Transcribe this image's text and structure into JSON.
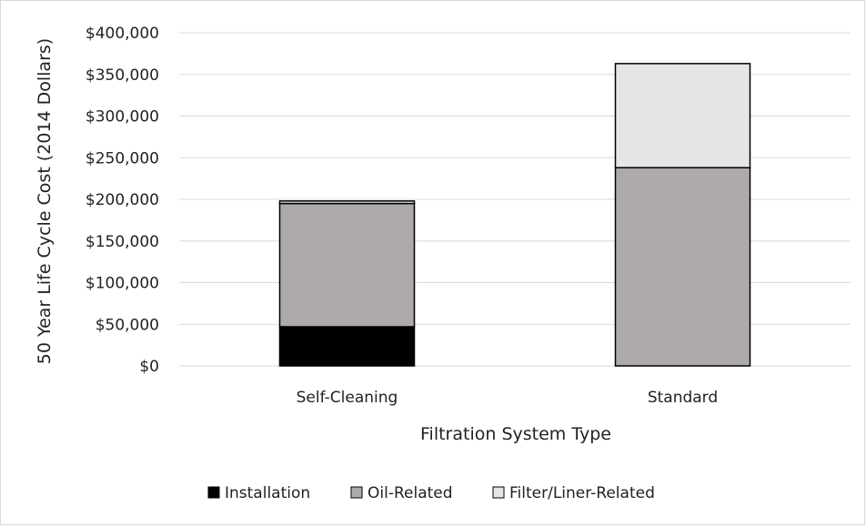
{
  "chart_data": {
    "type": "bar",
    "stacked": true,
    "categories": [
      "Self-Cleaning",
      "Standard"
    ],
    "series": [
      {
        "name": "Installation",
        "color": "#000000",
        "values": [
          47000,
          0
        ]
      },
      {
        "name": "Oil-Related",
        "color": "#aeaaaa",
        "values": [
          148000,
          238000
        ]
      },
      {
        "name": "Filter/Liner-Related",
        "color": "#e7e6e6",
        "values": [
          3000,
          125000
        ]
      }
    ],
    "xlabel": "Filtration System Type",
    "ylabel": "50 Year Life Cycle Cost (2014 Dollars)",
    "ylim": [
      0,
      400000
    ],
    "yticks": [
      0,
      50000,
      100000,
      150000,
      200000,
      250000,
      300000,
      350000,
      400000
    ],
    "ytick_labels": [
      "$0",
      "$50,000",
      "$100,000",
      "$150,000",
      "$200,000",
      "$250,000",
      "$300,000",
      "$350,000",
      "$400,000"
    ],
    "grid": true,
    "legend_position": "bottom"
  }
}
